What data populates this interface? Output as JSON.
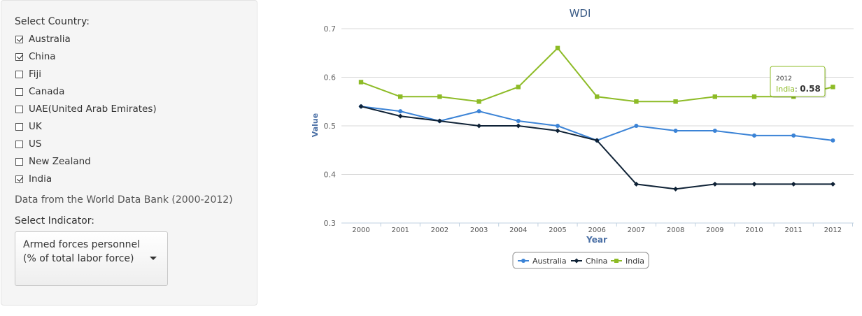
{
  "sidebar": {
    "country_label": "Select Country:",
    "countries": [
      {
        "name": "Australia",
        "checked": true
      },
      {
        "name": "China",
        "checked": true
      },
      {
        "name": "Fiji",
        "checked": false
      },
      {
        "name": "Canada",
        "checked": false
      },
      {
        "name": "UAE(United Arab Emirates)",
        "checked": false
      },
      {
        "name": "UK",
        "checked": false
      },
      {
        "name": "US",
        "checked": false
      },
      {
        "name": "New Zealand",
        "checked": false
      },
      {
        "name": "India",
        "checked": true
      }
    ],
    "data_note": "Data from the World Data Bank (2000-2012)",
    "indicator_label": "Select Indicator:",
    "indicator_value": "Armed forces personnel (% of total labor force)"
  },
  "chart_data": {
    "type": "line",
    "title": "WDI",
    "xlabel": "Year",
    "ylabel": "Value",
    "ylim": [
      0.3,
      0.7
    ],
    "yticks": [
      "0.3",
      "0.4",
      "0.5",
      "0.6",
      "0.7"
    ],
    "grid": true,
    "legend_position": "bottom",
    "categories": [
      "2000",
      "2001",
      "2002",
      "2003",
      "2004",
      "2005",
      "2006",
      "2007",
      "2008",
      "2009",
      "2010",
      "2011",
      "2012"
    ],
    "series": [
      {
        "name": "Australia",
        "color": "#3b83d6",
        "marker": "circle",
        "values": [
          0.54,
          0.53,
          0.51,
          0.53,
          0.51,
          0.5,
          0.47,
          0.5,
          0.49,
          0.49,
          0.48,
          0.48,
          0.47
        ]
      },
      {
        "name": "China",
        "color": "#0f2236",
        "marker": "diamond",
        "values": [
          0.54,
          0.52,
          0.51,
          0.5,
          0.5,
          0.49,
          0.47,
          0.38,
          0.37,
          0.38,
          0.38,
          0.38,
          0.38
        ]
      },
      {
        "name": "India",
        "color": "#8dbb26",
        "marker": "square",
        "values": [
          0.59,
          0.56,
          0.56,
          0.55,
          0.58,
          0.66,
          0.56,
          0.55,
          0.55,
          0.56,
          0.56,
          0.56,
          0.58
        ]
      }
    ],
    "tooltip": {
      "year": "2012",
      "series": "India",
      "value": "0.58"
    }
  }
}
